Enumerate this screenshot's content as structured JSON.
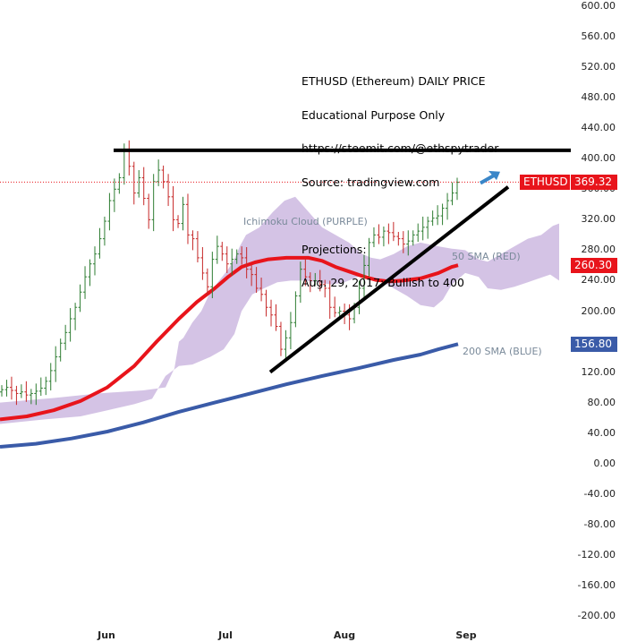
{
  "chart_data": {
    "type": "candlestick",
    "symbol_label": "ETHUSD",
    "info_lines": [
      "ETHUSD (Ethereum) DAILY PRICE",
      "Educational Purpose Only",
      "https://steemit.com/@ethspytrader",
      "Source: tradingview.com",
      "",
      "Projections:",
      "Aug. 29, 2017: Bullish to 400"
    ],
    "annotations": {
      "ichimoku": "Ichimoku Cloud (PURPLE)",
      "sma50": "50 SMA (RED)",
      "sma200": "200 SMA (BLUE)"
    },
    "x_ticks": [
      "Jun",
      "Jul",
      "Aug",
      "Sep"
    ],
    "y_ticks": [
      "600.00",
      "560.00",
      "520.00",
      "480.00",
      "440.00",
      "400.00",
      "360.00",
      "320.00",
      "280.00",
      "240.00",
      "200.00",
      "160.00",
      "120.00",
      "80.00",
      "40.00",
      "0.00",
      "-40.00",
      "-80.00",
      "-120.00",
      "-160.00",
      "-200.00"
    ],
    "ylim": [
      -200,
      600
    ],
    "price_tags": {
      "last": {
        "label": "369.32",
        "value": 369.32,
        "color": "#e8141b"
      },
      "sma50": {
        "label": "260.30",
        "value": 260.3,
        "color": "#e8141b"
      },
      "sma200": {
        "label": "156.80",
        "value": 156.8,
        "color": "#3a5ba8"
      }
    },
    "resistance_level": 411,
    "colors": {
      "up": "#2e7d32",
      "down": "#c62828",
      "sma50": "#e8141b",
      "sma200": "#3a5ba8",
      "cloud": "#cdb8e0",
      "line": "#000000"
    },
    "close_series": [
      97,
      100,
      96,
      92,
      94,
      90,
      92,
      95,
      99,
      108,
      122,
      140,
      158,
      172,
      190,
      205,
      225,
      245,
      262,
      275,
      295,
      318,
      345,
      360,
      375,
      410,
      390,
      355,
      375,
      348,
      320,
      370,
      385,
      370,
      350,
      320,
      315,
      340,
      300,
      295,
      270,
      250,
      232,
      268,
      285,
      275,
      262,
      268,
      275,
      270,
      255,
      248,
      230,
      222,
      205,
      195,
      180,
      150,
      165,
      185,
      220,
      255,
      245,
      240,
      240,
      235,
      230,
      205,
      198,
      200,
      195,
      190,
      205,
      230,
      260,
      290,
      300,
      297,
      305,
      303,
      298,
      295,
      288,
      292,
      300,
      305,
      310,
      318,
      322,
      325,
      335,
      345,
      355,
      369
    ]
  }
}
